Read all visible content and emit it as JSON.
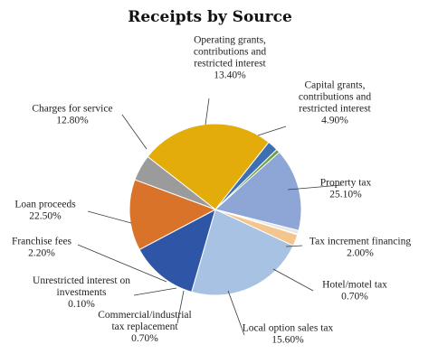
{
  "chart_data": {
    "type": "pie",
    "title": "Receipts by Source",
    "slices": [
      {
        "name": "Property tax",
        "value": 25.1,
        "label": "25.10%",
        "color": "#E3AC0B"
      },
      {
        "name": "Tax increment financing",
        "value": 2.0,
        "label": "2.00%",
        "color": "#3D6FB3"
      },
      {
        "name": "Hotel/motel tax",
        "value": 0.7,
        "label": "0.70%",
        "color": "#6FA04A"
      },
      {
        "name": "Local option sales tax",
        "value": 15.6,
        "label": "15.60%",
        "color": "#8EA6D6"
      },
      {
        "name": "Commercial/industrial tax replacement",
        "value": 0.7,
        "label": "0.70%",
        "color": "#E7E6E6"
      },
      {
        "name": "Unrestricted interest on investments",
        "value": 0.1,
        "label": "0.10%",
        "color": "#C9C9C9"
      },
      {
        "name": "Franchise fees",
        "value": 2.2,
        "label": "2.20%",
        "color": "#F3C58F"
      },
      {
        "name": "Loan proceeds",
        "value": 22.5,
        "label": "22.50%",
        "color": "#A8C2E3"
      },
      {
        "name": "Charges for service",
        "value": 12.8,
        "label": "12.80%",
        "color": "#2F56A6"
      },
      {
        "name": "Operating grants, contributions and restricted interest",
        "value": 13.4,
        "label": "13.40%",
        "color": "#D9732A"
      },
      {
        "name": "Capital grants, contributions and restricted interest",
        "value": 4.9,
        "label": "4.90%",
        "color": "#9B9B9B"
      }
    ]
  }
}
